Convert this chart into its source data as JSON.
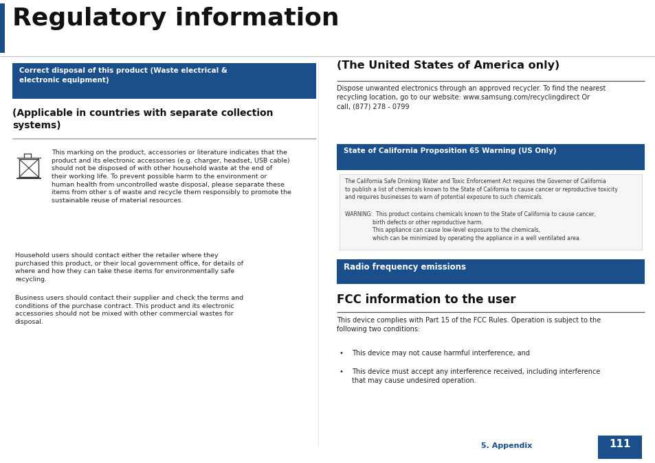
{
  "title": "Regulatory information",
  "dark_blue": "#1b4f8a",
  "bg_color": "#ffffff",
  "box1_label": "Correct disposal of this product (Waste electrical &\nelectronic equipment)",
  "section1_title": "(Applicable in countries with separate collection\nsystems)",
  "para1": "This marking on the product, accessories or literature indicates that the\nproduct and its electronic accessories (e.g. charger, headset, USB cable)\nshould not be disposed of with other household waste at the end of\ntheir working life. To prevent possible harm to the environment or\nhuman health from uncontrolled waste disposal, please separate these\nitems from other s of waste and recycle them responsibly to promote the\nsustainable reuse of material resources.",
  "para2": "Household users should contact either the retailer where they\npurchased this product, or their local government office, for details of\nwhere and how they can take these items for environmentally safe\nrecycling.",
  "para3": "Business users should contact their supplier and check the terms and\nconditions of the purchase contract. This product and its electronic\naccessories should not be mixed with other commercial wastes for\ndisposal.",
  "right_section1_title": "(The United States of America only)",
  "right_para1": "Dispose unwanted electronics through an approved recycler. To find the nearest\nrecycling location, go to our website: www.samsung.com/recyclingdirect Or\ncall, (877) 278 - 0799",
  "box2_label": "State of California Proposition 65 Warning (US Only)",
  "california_text1": "The California Safe Drinking Water and Toxic Enforcement Act requires the Governor of California\nto publish a list of chemicals known to the State of California to cause cancer or reproductive toxicity\nand requires businesses to warn of potential exposure to such chemicals.",
  "california_text2": "WARNING:  This product contains chemicals known to the State of California to cause cancer,\n                birth defects or other reproductive harm.\n                This appliance can cause low-level exposure to the chemicals,\n                which can be minimized by operating the appliance in a well ventilated area.",
  "box3_label": "Radio frequency emissions",
  "fcc_title": "FCC information to the user",
  "fcc_para1": "This device complies with Part 15 of the FCC Rules. Operation is subject to the\nfollowing two conditions:",
  "fcc_bullet1": "This device may not cause harmful interference, and",
  "fcc_bullet2": "This device must accept any interference received, including interference\nthat may cause undesired operation.",
  "footer_text": "5. Appendix",
  "page_num": "111",
  "fig_w": 9.54,
  "fig_h": 6.75,
  "dpi": 100
}
